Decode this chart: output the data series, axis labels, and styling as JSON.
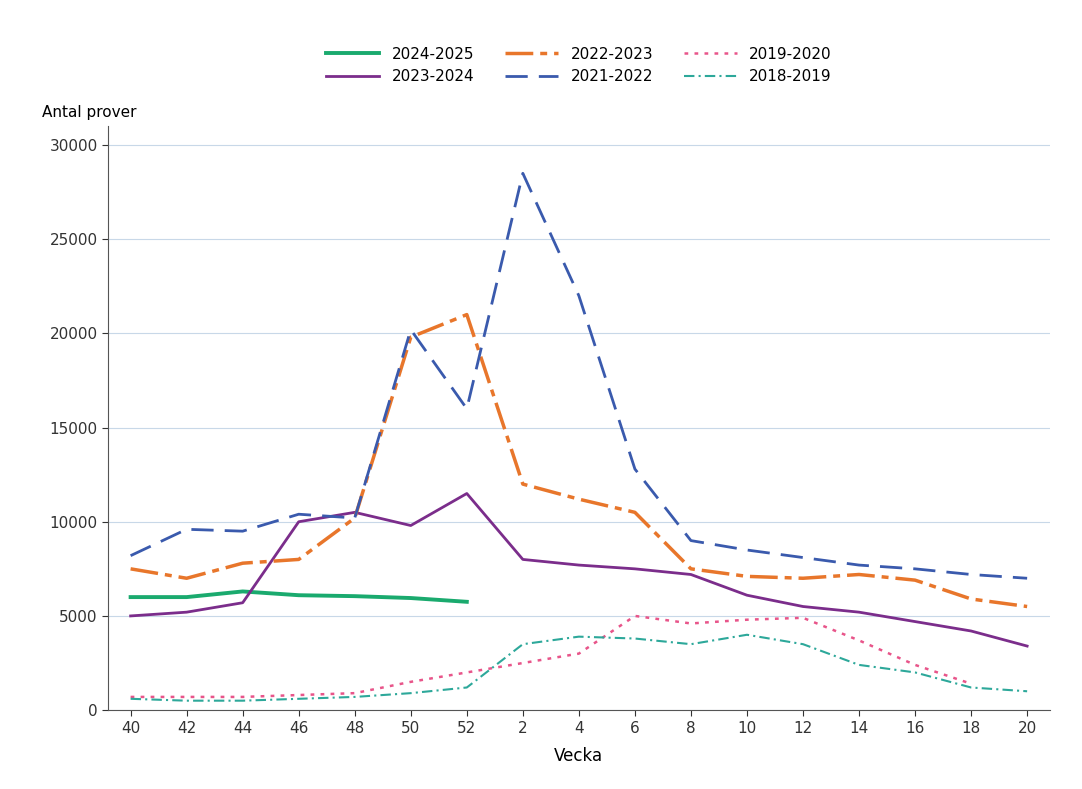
{
  "ylabel": "Antal prover",
  "xlabel": "Vecka",
  "x_ticks_labels": [
    "40",
    "42",
    "44",
    "46",
    "48",
    "50",
    "52",
    "2",
    "4",
    "6",
    "8",
    "10",
    "12",
    "14",
    "16",
    "18",
    "20"
  ],
  "ylim": [
    0,
    31000
  ],
  "yticks": [
    0,
    5000,
    10000,
    15000,
    20000,
    25000,
    30000
  ],
  "series": [
    {
      "label": "2024-2025",
      "color": "#1aaa6e",
      "style": "solid",
      "linewidth": 2.8,
      "values": [
        6000,
        6000,
        6300,
        6100,
        6050,
        5950,
        5750,
        null,
        null,
        null,
        null,
        null,
        null,
        null,
        null,
        null,
        null
      ]
    },
    {
      "label": "2023-2024",
      "color": "#7b2d8b",
      "style": "solid",
      "linewidth": 2.0,
      "values": [
        5000,
        5200,
        5700,
        10000,
        10500,
        9800,
        11500,
        8000,
        7700,
        7500,
        7200,
        6100,
        5500,
        5200,
        4700,
        4200,
        3400
      ]
    },
    {
      "label": "2022-2023",
      "color": "#e8762b",
      "style": "dashdot_custom",
      "linewidth": 2.5,
      "values": [
        7500,
        7000,
        7800,
        8000,
        10200,
        19800,
        21000,
        12000,
        11200,
        10500,
        7500,
        7100,
        7000,
        7200,
        6900,
        5900,
        5500
      ]
    },
    {
      "label": "2021-2022",
      "color": "#3a5aad",
      "style": "dashed_custom",
      "linewidth": 2.0,
      "values": [
        8200,
        9600,
        9500,
        10400,
        10200,
        20200,
        16000,
        28500,
        22000,
        12800,
        9000,
        8500,
        8100,
        7700,
        7500,
        7200,
        7000
      ]
    },
    {
      "label": "2019-2020",
      "color": "#e8558a",
      "style": "dotted_custom",
      "linewidth": 1.8,
      "values": [
        700,
        700,
        700,
        800,
        900,
        1500,
        2000,
        2500,
        3000,
        5000,
        4600,
        4800,
        4900,
        3700,
        2400,
        1400,
        null
      ]
    },
    {
      "label": "2018-2019",
      "color": "#2da89a",
      "style": "dashdot2_custom",
      "linewidth": 1.5,
      "values": [
        600,
        500,
        500,
        600,
        700,
        900,
        1200,
        3500,
        3900,
        3800,
        3500,
        4000,
        3500,
        2400,
        2000,
        1200,
        1000
      ]
    }
  ],
  "legend_order": [
    {
      "label": "2024-2025",
      "col": 0,
      "row": 0
    },
    {
      "label": "2023-2024",
      "col": 1,
      "row": 0
    },
    {
      "label": "2022-2023",
      "col": 2,
      "row": 0
    },
    {
      "label": "2021-2022",
      "col": 0,
      "row": 1
    },
    {
      "label": "2019-2020",
      "col": 1,
      "row": 1
    },
    {
      "label": "2018-2019",
      "col": 2,
      "row": 1
    }
  ]
}
